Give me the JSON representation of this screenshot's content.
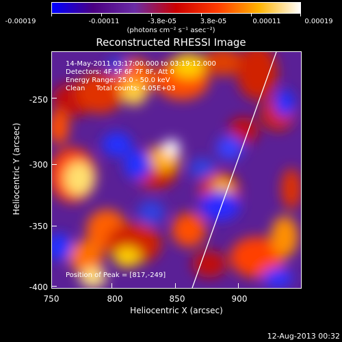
{
  "colorbar": {
    "ticks": [
      "-0.00019",
      "-0.00011",
      "-3.8e-05",
      "3.8e-05",
      "0.00011",
      "0.00019"
    ],
    "units": "(photons cm⁻² s⁻¹ asec⁻²)",
    "colors": [
      "#0000ff",
      "#4b0082",
      "#6a2ca5",
      "#cc0000",
      "#ff3b00",
      "#ffb300",
      "#ffffff"
    ]
  },
  "title": "Reconstructed RHESSI Image",
  "annotations": {
    "time": "14-May-2011 03:17:00.000 to 03:19:12.000",
    "detectors": "Detectors: 4F 5F 6F 7F 8F, Att 0",
    "energy": "Energy Range: 25.0 - 50.0 keV",
    "clean": "Clean     Total counts: 4.05E+03",
    "peak": "Position of Peak = [817,-249]"
  },
  "axes": {
    "xlabel": "Heliocentric X (arcsec)",
    "ylabel": "Heliocentric Y (arcsec)",
    "xticks": [
      "750",
      "800",
      "850",
      "900"
    ],
    "yticks": [
      "-250",
      "-300",
      "-350",
      "-400"
    ],
    "xrange": [
      750,
      942
    ],
    "yrange": [
      -402,
      -215
    ]
  },
  "footer": {
    "timestamp": "12-Aug-2013 00:32"
  }
}
